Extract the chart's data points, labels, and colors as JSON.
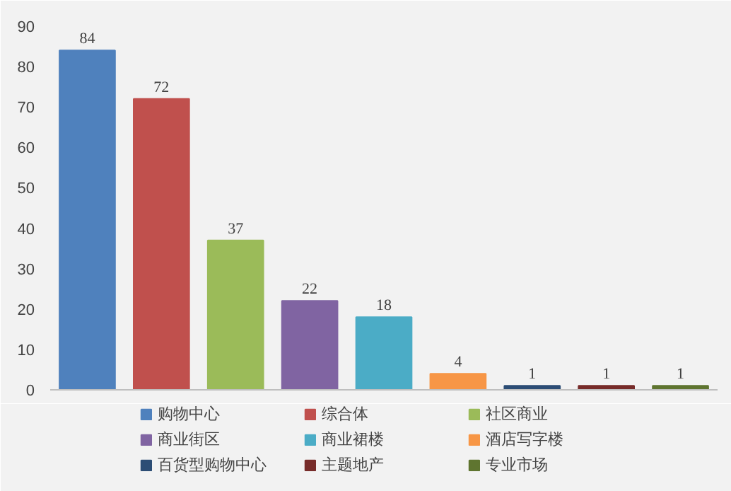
{
  "chart_data": {
    "type": "bar",
    "categories": [
      null,
      null,
      null,
      null,
      null,
      null,
      null,
      null,
      null
    ],
    "series": [
      {
        "name": "购物中心",
        "color": "#4f81bd",
        "values": [
          84,
          null,
          null,
          null,
          null,
          null,
          null,
          null,
          null
        ]
      },
      {
        "name": "综合体",
        "color": "#c0504d",
        "values": [
          null,
          72,
          null,
          null,
          null,
          null,
          null,
          null,
          null
        ]
      },
      {
        "name": "社区商业",
        "color": "#9bbb59",
        "values": [
          null,
          null,
          37,
          null,
          null,
          null,
          null,
          null,
          null
        ]
      },
      {
        "name": "商业街区",
        "color": "#8064a2",
        "values": [
          null,
          null,
          null,
          22,
          null,
          null,
          null,
          null,
          null
        ]
      },
      {
        "name": "商业裙楼",
        "color": "#4bacc6",
        "values": [
          null,
          null,
          null,
          null,
          18,
          null,
          null,
          null,
          null
        ]
      },
      {
        "name": "酒店写字楼",
        "color": "#f79646",
        "values": [
          null,
          null,
          null,
          null,
          null,
          4,
          null,
          null,
          null
        ]
      },
      {
        "name": "百货型购物中心",
        "color": "#2c4d75",
        "values": [
          null,
          null,
          null,
          null,
          null,
          null,
          1,
          null,
          null
        ]
      },
      {
        "name": "主题地产",
        "color": "#772c2a",
        "values": [
          null,
          null,
          null,
          null,
          null,
          null,
          null,
          1,
          null
        ]
      },
      {
        "name": "专业市场",
        "color": "#5f7530",
        "values": [
          null,
          null,
          null,
          null,
          null,
          null,
          null,
          null,
          1
        ]
      }
    ],
    "ylim": [
      0,
      90
    ],
    "yticks": [
      0,
      10,
      20,
      30,
      40,
      50,
      60,
      70,
      80,
      90
    ],
    "data_labels": true,
    "legend": "bottom",
    "tick_labels": "y"
  }
}
